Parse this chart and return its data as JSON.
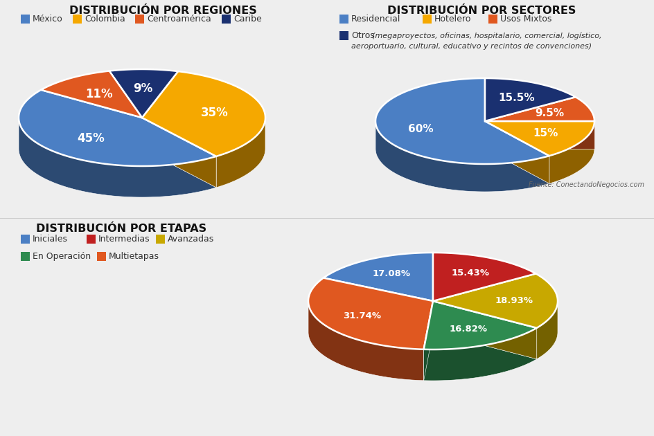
{
  "bg_color": "#eeeeee",
  "title1": "DISTRIBUCIÓN POR REGIONES",
  "title2": "DISTRIBUCIÓN POR SECTORES",
  "title3": "DISTRIBUCIÓN POR ETAPAS",
  "pie1": {
    "values": [
      45,
      35,
      9,
      11
    ],
    "labels": [
      "45%",
      "35%",
      "9%",
      "11%"
    ],
    "colors": [
      "#4b7fc4",
      "#f5a800",
      "#1a3070",
      "#e05820"
    ],
    "legend_labels": [
      "México",
      "Colombia",
      "Caribe",
      "Centroamérica"
    ],
    "startangle": 145
  },
  "pie2": {
    "values": [
      60,
      15,
      9.5,
      15.5
    ],
    "labels": [
      "60%",
      "15%",
      "9.5%",
      "15.5%"
    ],
    "colors": [
      "#4b7fc4",
      "#f5a800",
      "#e05820",
      "#1a3070"
    ],
    "legend_labels": [
      "Residencial",
      "Hotelero",
      "Usos Mixtos",
      "Otros"
    ],
    "startangle": 90
  },
  "pie3": {
    "values": [
      17.08,
      31.74,
      16.82,
      18.93,
      15.43
    ],
    "labels": [
      "17.08%",
      "31.74%",
      "16.82%",
      "18.93%",
      "15.43%"
    ],
    "colors": [
      "#4b7fc4",
      "#e05820",
      "#2e8b50",
      "#c8a800",
      "#c02020"
    ],
    "legend_labels": [
      "Iniciales",
      "Multietapas",
      "En Operación",
      "Avanzadas",
      "Intermedias"
    ],
    "startangle": 90
  },
  "source_text": "Fuente: ConectandoNegocios.com"
}
